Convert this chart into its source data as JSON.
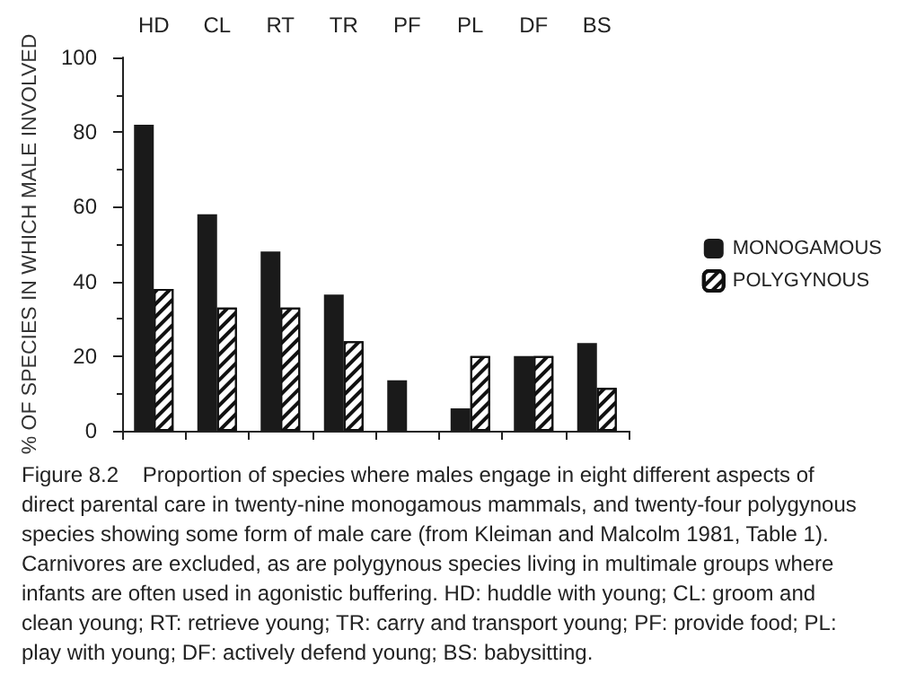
{
  "chart_data": {
    "type": "bar",
    "categories": [
      "HD",
      "CL",
      "RT",
      "TR",
      "PF",
      "PL",
      "DF",
      "BS"
    ],
    "series": [
      {
        "name": "MONOGAMOUS",
        "color": "#1a1a1a",
        "values": [
          82,
          58,
          48,
          36.5,
          13.5,
          6,
          20,
          23.5
        ]
      },
      {
        "name": "POLYGYNOUS",
        "color": "#ffffff",
        "values": [
          38,
          33,
          33,
          24,
          null,
          20,
          20,
          11.5
        ]
      }
    ],
    "ylabel": "% OF SPECIES IN WHICH MALE INVOLVED",
    "ylim": [
      0,
      100
    ],
    "yticks": [
      0,
      20,
      40,
      60,
      80,
      100
    ],
    "grid": false,
    "legend": "right",
    "annotations": [
      "Figure 8.2    Proportion of species where males engage in eight different aspects of direct parental care in twenty-nine monogamous mammals, and twenty-four polygynous species showing some form of male care (from Kleiman and Malcolm 1981, Table 1). Carnivores are excluded, as are polygynous species living in multimale groups where infants are often used in agonistic buffering. HD: huddle with young; CL: groom and clean young; RT: retrieve young; TR: carry and transport young; PF: provide food; PL: play with young; DF: actively defend young; BS: babysitting."
    ]
  }
}
